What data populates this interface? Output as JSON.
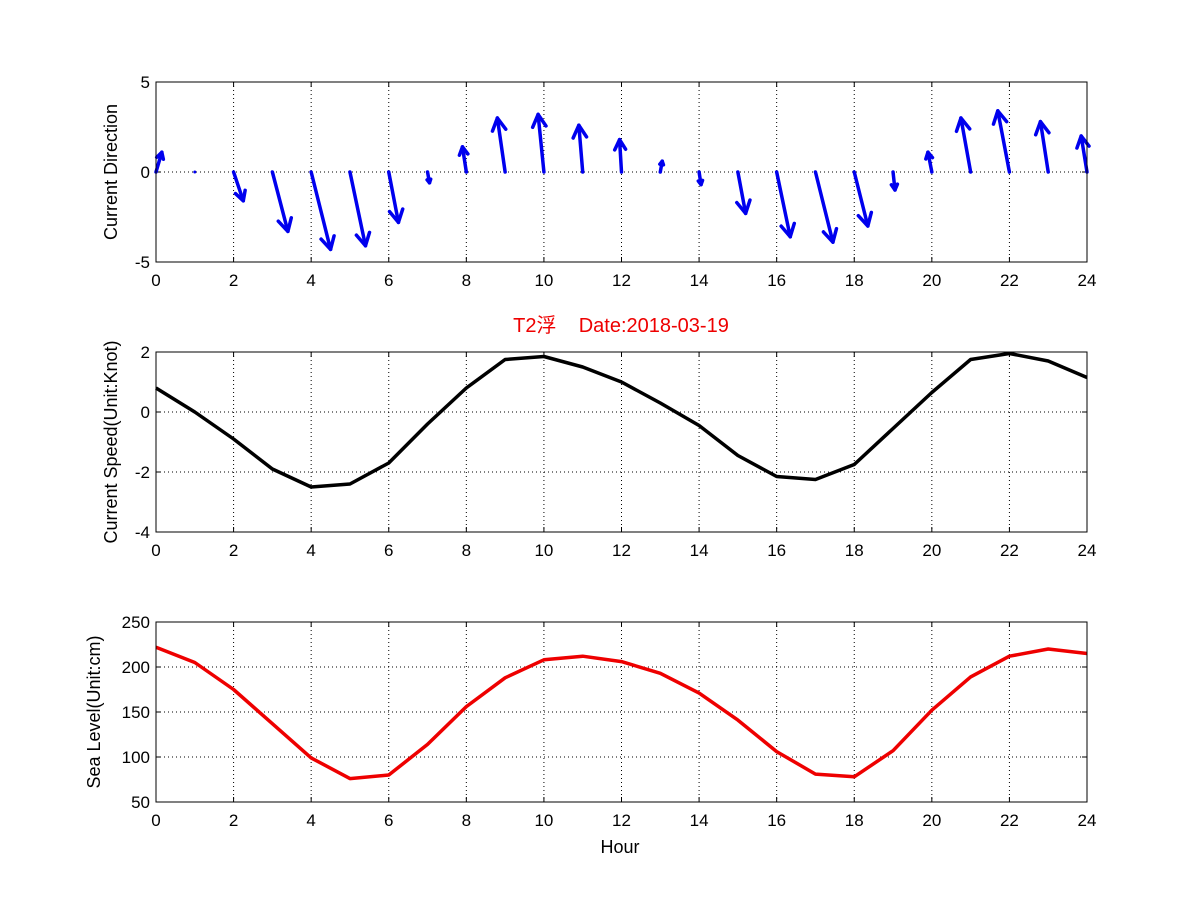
{
  "colors": {
    "direction": "#0000ee",
    "speed": "#000000",
    "sea_level": "#ee0000",
    "title": "#ee0000",
    "grid": "#000000"
  },
  "chart_data": [
    {
      "type": "quiver",
      "title": "",
      "xlabel": "",
      "ylabel": "Current Direction",
      "xlim": [
        0,
        24
      ],
      "ylim": [
        -5,
        5
      ],
      "xticks": [
        "0",
        "2",
        "4",
        "6",
        "8",
        "10",
        "12",
        "14",
        "16",
        "18",
        "20",
        "22",
        "24"
      ],
      "yticks": [
        "5",
        "0",
        "-5"
      ],
      "grid": true,
      "series": [
        {
          "x": [
            0,
            1,
            2,
            3,
            4,
            5,
            6,
            7,
            8,
            9,
            10,
            11,
            12,
            13,
            14,
            15,
            16,
            17,
            18,
            19,
            20,
            21,
            22,
            23,
            24
          ],
          "u": [
            0.15,
            0.0,
            0.25,
            0.4,
            0.5,
            0.4,
            0.25,
            0.05,
            -0.1,
            -0.2,
            -0.15,
            -0.1,
            -0.05,
            0.05,
            0.05,
            0.2,
            0.35,
            0.45,
            0.35,
            0.05,
            -0.1,
            -0.25,
            -0.3,
            -0.2,
            -0.15
          ],
          "v": [
            1.1,
            0.0,
            -1.6,
            -3.3,
            -4.3,
            -4.1,
            -2.8,
            -0.6,
            1.4,
            3.0,
            3.2,
            2.6,
            1.8,
            0.6,
            -0.7,
            -2.3,
            -3.6,
            -3.9,
            -3.0,
            -1.0,
            1.1,
            3.0,
            3.4,
            2.8,
            2.0
          ]
        }
      ]
    },
    {
      "type": "line",
      "title": "T2浮    Date:2018-03-19",
      "xlabel": "",
      "ylabel": "Current Speed(Unit:Knot)",
      "xlim": [
        0,
        24
      ],
      "ylim": [
        -4,
        2
      ],
      "xticks": [
        "0",
        "2",
        "4",
        "6",
        "8",
        "10",
        "12",
        "14",
        "16",
        "18",
        "20",
        "22",
        "24"
      ],
      "yticks": [
        "2",
        "0",
        "-2",
        "-4"
      ],
      "grid": true,
      "series": [
        {
          "x": [
            0,
            1,
            2,
            3,
            4,
            5,
            6,
            7,
            8,
            9,
            10,
            11,
            12,
            13,
            14,
            15,
            16,
            17,
            18,
            19,
            20,
            21,
            22,
            23,
            24
          ],
          "y": [
            0.8,
            0.0,
            -0.9,
            -1.9,
            -2.5,
            -2.4,
            -1.7,
            -0.4,
            0.8,
            1.75,
            1.85,
            1.5,
            1.0,
            0.3,
            -0.45,
            -1.45,
            -2.15,
            -2.25,
            -1.75,
            -0.55,
            0.65,
            1.75,
            1.95,
            1.7,
            1.15
          ]
        }
      ]
    },
    {
      "type": "line",
      "title": "",
      "xlabel": "Hour",
      "ylabel": "Sea Level(Unit:cm)",
      "xlim": [
        0,
        24
      ],
      "ylim": [
        50,
        250
      ],
      "xticks": [
        "0",
        "2",
        "4",
        "6",
        "8",
        "10",
        "12",
        "14",
        "16",
        "18",
        "20",
        "22",
        "24"
      ],
      "yticks": [
        "250",
        "200",
        "150",
        "100",
        "50"
      ],
      "grid": true,
      "series": [
        {
          "x": [
            0,
            1,
            2,
            3,
            4,
            5,
            6,
            7,
            8,
            9,
            10,
            11,
            12,
            13,
            14,
            15,
            16,
            17,
            18,
            19,
            20,
            21,
            22,
            23,
            24
          ],
          "y": [
            222,
            205,
            175,
            137,
            99,
            76,
            80,
            114,
            156,
            188,
            208,
            212,
            206,
            193,
            171,
            141,
            106,
            81,
            78,
            107,
            152,
            189,
            212,
            220,
            215
          ]
        }
      ]
    }
  ]
}
